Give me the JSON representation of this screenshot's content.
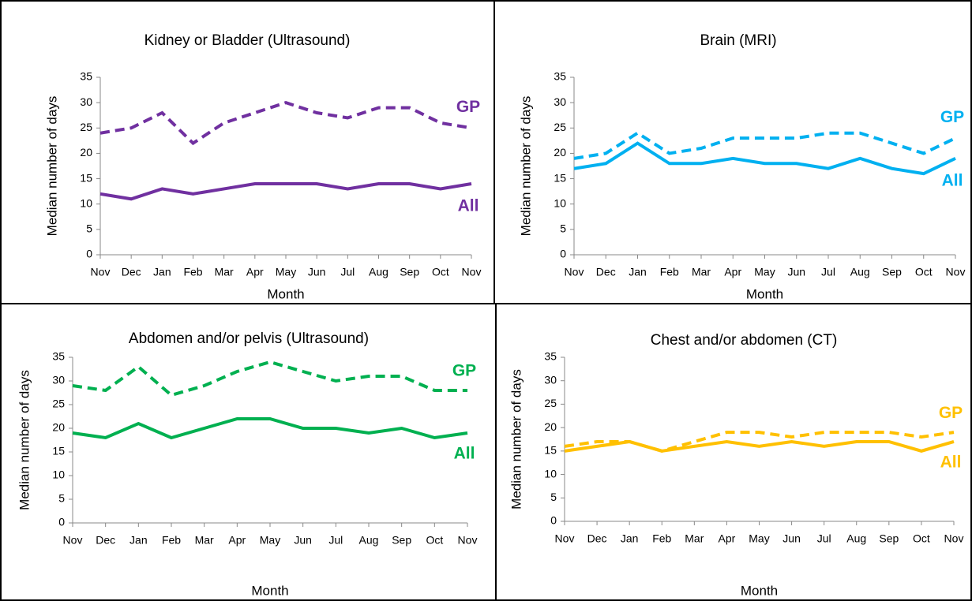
{
  "chart_data": [
    {
      "type": "line",
      "title": "Kidney or Bladder (Ultrasound)",
      "xlabel": "Month",
      "ylabel": "Median number of days",
      "categories": [
        "Nov",
        "Dec",
        "Jan",
        "Feb",
        "Mar",
        "Apr",
        "May",
        "Jun",
        "Jul",
        "Aug",
        "Sep",
        "Oct",
        "Nov"
      ],
      "ylim": [
        0,
        35
      ],
      "yticks": [
        0,
        5,
        10,
        15,
        20,
        25,
        30,
        35
      ],
      "series": [
        {
          "name": "GP",
          "color": "#7030a0",
          "dashed": true,
          "values": [
            24,
            25,
            28,
            22,
            26,
            28,
            30,
            28,
            27,
            29,
            29,
            26,
            25
          ]
        },
        {
          "name": "All",
          "color": "#7030a0",
          "dashed": false,
          "values": [
            12,
            11,
            13,
            12,
            13,
            14,
            14,
            14,
            13,
            14,
            14,
            13,
            14
          ]
        }
      ]
    },
    {
      "type": "line",
      "title": "Brain (MRI)",
      "xlabel": "Month",
      "ylabel": "Median number of days",
      "categories": [
        "Nov",
        "Dec",
        "Jan",
        "Feb",
        "Mar",
        "Apr",
        "May",
        "Jun",
        "Jul",
        "Aug",
        "Sep",
        "Oct",
        "Nov"
      ],
      "ylim": [
        0,
        35
      ],
      "yticks": [
        0,
        5,
        10,
        15,
        20,
        25,
        30,
        35
      ],
      "series": [
        {
          "name": "GP",
          "color": "#00b0f0",
          "dashed": true,
          "values": [
            19,
            20,
            24,
            20,
            21,
            23,
            23,
            23,
            24,
            24,
            22,
            20,
            23
          ]
        },
        {
          "name": "All",
          "color": "#00b0f0",
          "dashed": false,
          "values": [
            17,
            18,
            22,
            18,
            18,
            19,
            18,
            18,
            17,
            19,
            17,
            16,
            19
          ]
        }
      ]
    },
    {
      "type": "line",
      "title": "Abdomen and/or pelvis (Ultrasound)",
      "xlabel": "Month",
      "ylabel": "Median number of days",
      "categories": [
        "Nov",
        "Dec",
        "Jan",
        "Feb",
        "Mar",
        "Apr",
        "May",
        "Jun",
        "Jul",
        "Aug",
        "Sep",
        "Oct",
        "Nov"
      ],
      "ylim": [
        0,
        35
      ],
      "yticks": [
        0,
        5,
        10,
        15,
        20,
        25,
        30,
        35
      ],
      "series": [
        {
          "name": "GP",
          "color": "#00b050",
          "dashed": true,
          "values": [
            29,
            28,
            33,
            27,
            29,
            32,
            34,
            32,
            30,
            31,
            31,
            28,
            28
          ]
        },
        {
          "name": "All",
          "color": "#00b050",
          "dashed": false,
          "values": [
            19,
            18,
            21,
            18,
            20,
            22,
            22,
            20,
            20,
            19,
            20,
            18,
            19
          ]
        }
      ]
    },
    {
      "type": "line",
      "title": "Chest and/or abdomen (CT)",
      "xlabel": "Month",
      "ylabel": "Median number of days",
      "categories": [
        "Nov",
        "Dec",
        "Jan",
        "Feb",
        "Mar",
        "Apr",
        "May",
        "Jun",
        "Jul",
        "Aug",
        "Sep",
        "Oct",
        "Nov"
      ],
      "ylim": [
        0,
        35
      ],
      "yticks": [
        0,
        5,
        10,
        15,
        20,
        25,
        30,
        35
      ],
      "series": [
        {
          "name": "GP",
          "color": "#ffc000",
          "dashed": true,
          "values": [
            16,
            17,
            17,
            15,
            17,
            19,
            19,
            18,
            19,
            19,
            19,
            18,
            19
          ]
        },
        {
          "name": "All",
          "color": "#ffc000",
          "dashed": false,
          "values": [
            15,
            16,
            17,
            15,
            16,
            17,
            16,
            17,
            16,
            17,
            17,
            15,
            17
          ]
        }
      ]
    }
  ]
}
